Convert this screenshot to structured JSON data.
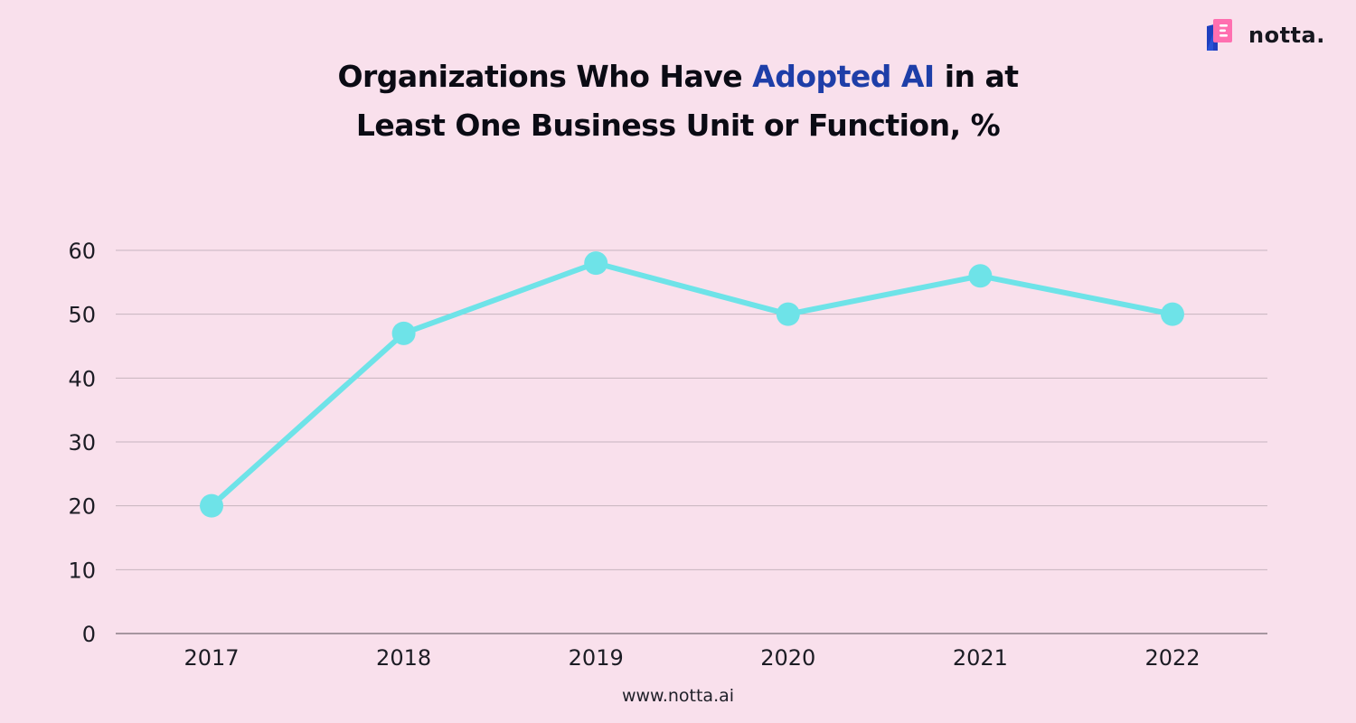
{
  "title": {
    "before": "Organizations Who Have ",
    "highlight": "Adopted AI",
    "after": " in at",
    "line2": "Least One Business Unit or Function, %"
  },
  "logo": {
    "word": "notta.",
    "icon": "notta-logo-icon"
  },
  "footer": "www.notta.ai",
  "colors": {
    "background": "#f9e0ec",
    "title_highlight": "#1e3ea8",
    "series": "#6ee3e8",
    "grid": "#c8b4bf",
    "axis_line": "#8a7d85"
  },
  "chart_data": {
    "type": "line",
    "categories": [
      "2017",
      "2018",
      "2019",
      "2020",
      "2021",
      "2022"
    ],
    "series": [
      {
        "values": [
          20,
          47,
          58,
          50,
          56,
          50
        ]
      }
    ],
    "ylim": [
      0,
      60
    ],
    "yticks": [
      "0",
      "10",
      "20",
      "30",
      "40",
      "50",
      "60"
    ],
    "grid": true,
    "legend": "none",
    "markers": true
  }
}
